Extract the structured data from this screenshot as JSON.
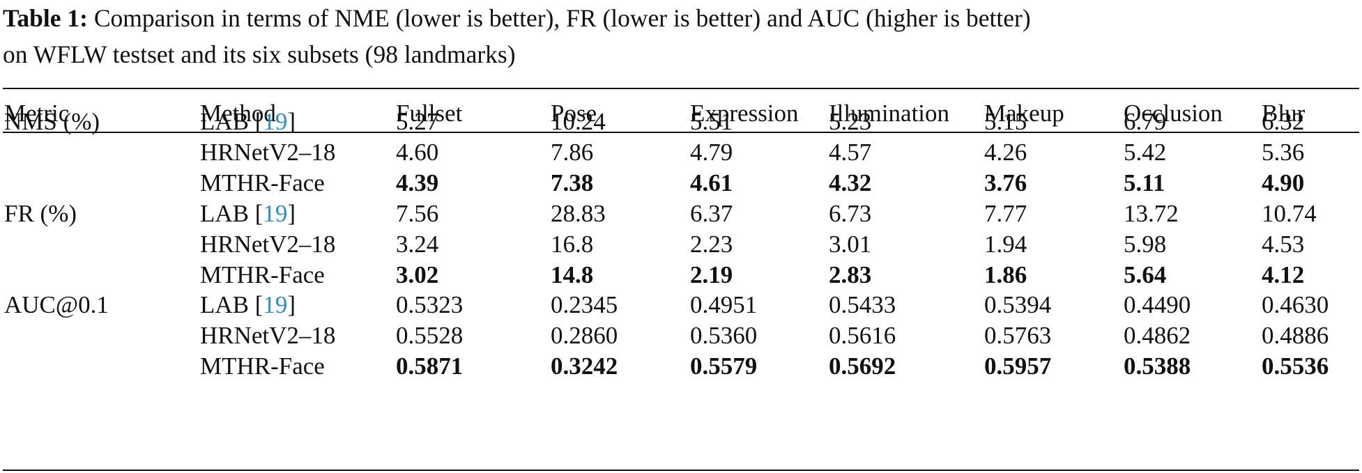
{
  "caption": {
    "label": "Table 1:",
    "line1": " Comparison in terms of NME (lower is better), FR (lower is better) and AUC (higher is better)",
    "line2": "on WFLW testset and its six subsets (98 landmarks)"
  },
  "columns": [
    "Metric",
    "Method",
    "Fullset",
    "Pose",
    "Expression",
    "Illumination",
    "Makeup",
    "Occlusion",
    "Blur"
  ],
  "groups": [
    {
      "metric": "NMS (%)",
      "rows": [
        {
          "method": "LAB [",
          "ref": "19",
          "close": "]",
          "values": [
            "5.27",
            "10.24",
            "5.51",
            "5.23",
            "5.15",
            "6.79",
            "6.32"
          ],
          "bold": false
        },
        {
          "method": "HRNetV2–18",
          "ref": "",
          "close": "",
          "values": [
            "4.60",
            "7.86",
            "4.79",
            "4.57",
            "4.26",
            "5.42",
            "5.36"
          ],
          "bold": false
        },
        {
          "method": "MTHR-Face",
          "ref": "",
          "close": "",
          "values": [
            "4.39",
            "7.38",
            "4.61",
            "4.32",
            "3.76",
            "5.11",
            "4.90"
          ],
          "bold": true
        }
      ]
    },
    {
      "metric": "FR (%)",
      "rows": [
        {
          "method": "LAB [",
          "ref": "19",
          "close": "]",
          "values": [
            "7.56",
            "28.83",
            "6.37",
            "6.73",
            "7.77",
            "13.72",
            "10.74"
          ],
          "bold": false
        },
        {
          "method": "HRNetV2–18",
          "ref": "",
          "close": "",
          "values": [
            "3.24",
            "16.8",
            "2.23",
            "3.01",
            "1.94",
            "5.98",
            "4.53"
          ],
          "bold": false
        },
        {
          "method": "MTHR-Face",
          "ref": "",
          "close": "",
          "values": [
            "3.02",
            "14.8",
            "2.19",
            "2.83",
            "1.86",
            "5.64",
            "4.12"
          ],
          "bold": true
        }
      ]
    },
    {
      "metric": "AUC@0.1",
      "rows": [
        {
          "method": "LAB [",
          "ref": "19",
          "close": "]",
          "values": [
            "0.5323",
            "0.2345",
            "0.4951",
            "0.5433",
            "0.5394",
            "0.4490",
            "0.4630"
          ],
          "bold": false
        },
        {
          "method": "HRNetV2–18",
          "ref": "",
          "close": "",
          "values": [
            "0.5528",
            "0.2860",
            "0.5360",
            "0.5616",
            "0.5763",
            "0.4862",
            "0.4886"
          ],
          "bold": false
        },
        {
          "method": "MTHR-Face",
          "ref": "",
          "close": "",
          "values": [
            "0.5871",
            "0.3242",
            "0.5579",
            "0.5692",
            "0.5957",
            "0.5388",
            "0.5536"
          ],
          "bold": true
        }
      ]
    }
  ],
  "colors": {
    "citation_link": "#2a8fc7",
    "text": "#111111"
  }
}
